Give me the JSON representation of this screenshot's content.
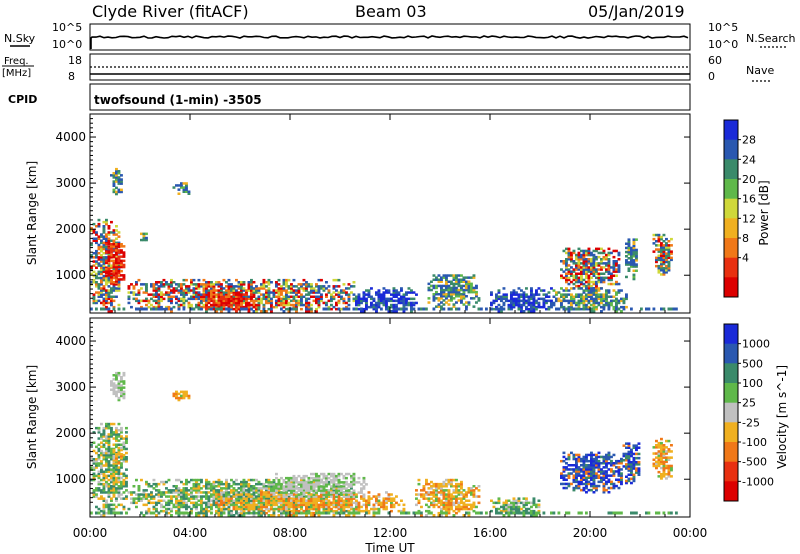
{
  "header": {
    "station": "Clyde River (fitACF)",
    "beam": "Beam 03",
    "date": "05/Jan/2019"
  },
  "nsky_panel": {
    "left_label": "N.Sky",
    "left_ticks": [
      "10^5",
      "10^0"
    ],
    "right_label": "N.Search",
    "right_ticks": [
      "10^5",
      "10^0"
    ]
  },
  "freq_panel": {
    "left_label_1": "Freq.",
    "left_label_2": "[MHz]",
    "left_ticks": [
      "18",
      "8"
    ],
    "right_label": "Nave",
    "right_ticks": [
      "60",
      "0"
    ]
  },
  "cpid_panel": {
    "left_label": "CPID",
    "program": "twofsound (1-min) -3505"
  },
  "colors": {
    "power_scale": [
      "#1a2ad8",
      "#2a58b0",
      "#3a8a6a",
      "#5fb84a",
      "#cfd83a",
      "#f0b020",
      "#f07818",
      "#e83010",
      "#dc0000"
    ],
    "velocity_scale": [
      "#1a2ad8",
      "#2a58b0",
      "#3a8a6a",
      "#5fb84a",
      "#c0c0c0",
      "#f0b020",
      "#f07818",
      "#e83010",
      "#dc0000"
    ]
  },
  "chart_data": [
    {
      "type": "heatmap",
      "name": "power",
      "xlabel": "",
      "ylabel": "Slant Range [km]",
      "x_ticks": [
        "00:00",
        "04:00",
        "08:00",
        "12:00",
        "16:00",
        "20:00",
        "00:00"
      ],
      "xlim": [
        0,
        24
      ],
      "ylim": [
        180,
        4500
      ],
      "y_ticks": [
        1000,
        2000,
        3000,
        4000
      ],
      "colorbar_label": "Power [dB]",
      "colorbar_ticks": [
        "28",
        "24",
        "20",
        "16",
        "12",
        "8",
        "4"
      ],
      "echo_regions": [
        {
          "t_start": 0.0,
          "t_end": 1.2,
          "r_start": 200,
          "r_end": 2200,
          "level": "high"
        },
        {
          "t_start": 0.6,
          "t_end": 1.4,
          "r_start": 800,
          "r_end": 1700,
          "level": "max"
        },
        {
          "t_start": 0.8,
          "t_end": 1.3,
          "r_start": 2700,
          "r_end": 3300,
          "level": "mid"
        },
        {
          "t_start": 2.0,
          "t_end": 2.3,
          "r_start": 1700,
          "r_end": 1900,
          "level": "mid"
        },
        {
          "t_start": 3.3,
          "t_end": 4.0,
          "r_start": 2750,
          "r_end": 3000,
          "level": "mid"
        },
        {
          "t_start": 1.5,
          "t_end": 10.5,
          "r_start": 200,
          "r_end": 900,
          "level": "high"
        },
        {
          "t_start": 4.5,
          "t_end": 6.5,
          "r_start": 200,
          "r_end": 600,
          "level": "max"
        },
        {
          "t_start": 10.5,
          "t_end": 13.0,
          "r_start": 200,
          "r_end": 700,
          "level": "low"
        },
        {
          "t_start": 13.5,
          "t_end": 15.5,
          "r_start": 300,
          "r_end": 1000,
          "level": "mid"
        },
        {
          "t_start": 16.0,
          "t_end": 18.5,
          "r_start": 200,
          "r_end": 700,
          "level": "low"
        },
        {
          "t_start": 18.8,
          "t_end": 21.2,
          "r_start": 700,
          "r_end": 1600,
          "level": "high"
        },
        {
          "t_start": 18.5,
          "t_end": 21.5,
          "r_start": 200,
          "r_end": 700,
          "level": "mid"
        },
        {
          "t_start": 21.4,
          "t_end": 21.9,
          "r_start": 900,
          "r_end": 1800,
          "level": "mid"
        },
        {
          "t_start": 22.5,
          "t_end": 23.3,
          "r_start": 1000,
          "r_end": 1900,
          "level": "high"
        }
      ]
    },
    {
      "type": "heatmap",
      "name": "velocity",
      "xlabel": "Time UT",
      "ylabel": "Slant Range [km]",
      "x_ticks": [
        "00:00",
        "04:00",
        "08:00",
        "12:00",
        "16:00",
        "20:00",
        "00:00"
      ],
      "xlim": [
        0,
        24
      ],
      "ylim": [
        180,
        4500
      ],
      "y_ticks": [
        1000,
        2000,
        3000,
        4000
      ],
      "colorbar_label": "Velocity [m s^-1]",
      "colorbar_ticks": [
        "1000",
        "500",
        "100",
        "25",
        "-25",
        "-100",
        "-500",
        "-1000"
      ],
      "echo_regions": [
        {
          "t_start": 0.0,
          "t_end": 1.5,
          "r_start": 200,
          "r_end": 2200,
          "level": "mixed_green"
        },
        {
          "t_start": 0.8,
          "t_end": 1.3,
          "r_start": 1300,
          "r_end": 1700,
          "level": "away"
        },
        {
          "t_start": 0.8,
          "t_end": 1.4,
          "r_start": 2700,
          "r_end": 3300,
          "level": "gray"
        },
        {
          "t_start": 3.3,
          "t_end": 4.0,
          "r_start": 2700,
          "r_end": 2950,
          "level": "away"
        },
        {
          "t_start": 1.5,
          "t_end": 10.5,
          "r_start": 200,
          "r_end": 1000,
          "level": "mixed_green"
        },
        {
          "t_start": 5.0,
          "t_end": 12.5,
          "r_start": 200,
          "r_end": 700,
          "level": "away"
        },
        {
          "t_start": 7.0,
          "t_end": 11.0,
          "r_start": 600,
          "r_end": 1100,
          "level": "gray"
        },
        {
          "t_start": 13.0,
          "t_end": 15.5,
          "r_start": 200,
          "r_end": 1000,
          "level": "away"
        },
        {
          "t_start": 16.0,
          "t_end": 18.0,
          "r_start": 200,
          "r_end": 600,
          "level": "mixed_green"
        },
        {
          "t_start": 18.8,
          "t_end": 21.3,
          "r_start": 700,
          "r_end": 1600,
          "level": "toward"
        },
        {
          "t_start": 21.3,
          "t_end": 22.0,
          "r_start": 900,
          "r_end": 1800,
          "level": "toward"
        },
        {
          "t_start": 22.5,
          "t_end": 23.3,
          "r_start": 1000,
          "r_end": 1900,
          "level": "away"
        }
      ]
    }
  ]
}
